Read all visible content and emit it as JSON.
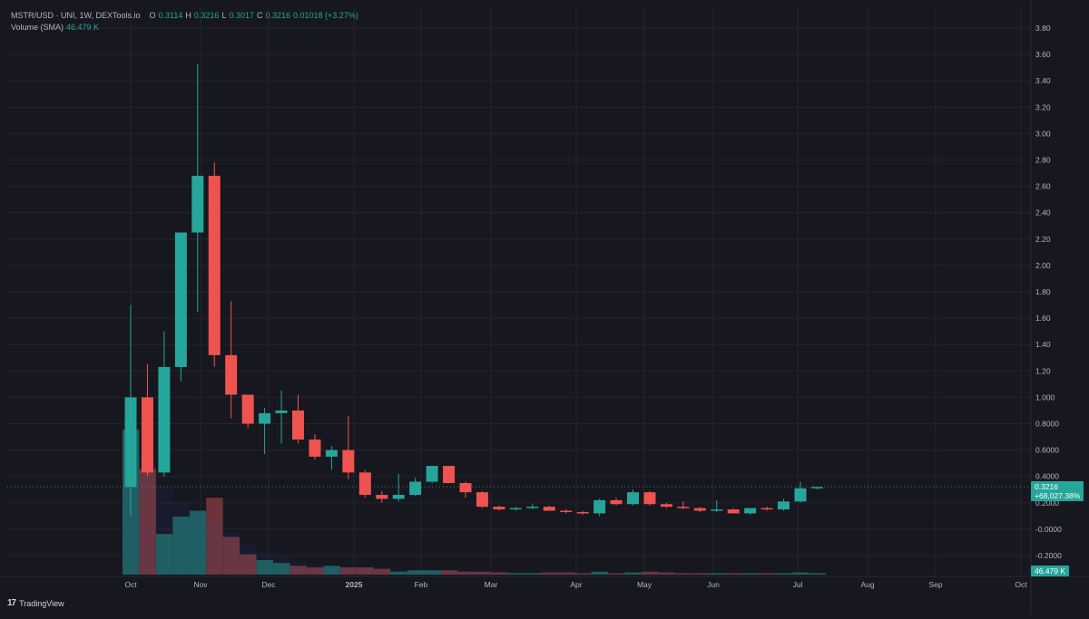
{
  "header": {
    "symbol": "MSTR/USD · UNI, 1W, DEXTools.io",
    "ohlc": [
      {
        "key": "O",
        "value": "0.3114"
      },
      {
        "key": "H",
        "value": "0.3216"
      },
      {
        "key": "L",
        "value": "0.3017"
      },
      {
        "key": "C",
        "value": "0.3216"
      }
    ],
    "change": "0.01018 (+3.27%)",
    "volume_label": "Volume (SMA)",
    "volume_value": "46.479 K"
  },
  "price_tag": {
    "price": "0.3216",
    "change": "+68,027.38%"
  },
  "volume_tag": "46.479 K",
  "branding": {
    "logo": "17",
    "name": "TradingView"
  },
  "colors": {
    "background": "#17171f",
    "grid": "#24242e",
    "up": "#26a69a",
    "down": "#ef5350",
    "up_volume": "#1f5f5a",
    "down_volume": "#6e3338",
    "text": "#b2b5be"
  },
  "chart_data": {
    "type": "candlestick",
    "interval": "1W",
    "y_ticks": [
      "3.80",
      "3.60",
      "3.40",
      "3.20",
      "3.00",
      "2.80",
      "2.60",
      "2.40",
      "2.20",
      "2.00",
      "1.80",
      "1.60",
      "1.40",
      "1.20",
      "1.000",
      "0.8000",
      "0.6000",
      "0.4000",
      "0.2000",
      "-0.0000",
      "-0.2000"
    ],
    "x_ticks": [
      "Oct",
      "Nov",
      "Dec",
      "2025",
      "Feb",
      "Mar",
      "Apr",
      "May",
      "Jun",
      "Jul",
      "Aug",
      "Sep",
      "Oct"
    ],
    "ylim": [
      -0.35,
      3.9
    ],
    "candles": [
      {
        "o": 0.32,
        "h": 1.7,
        "l": 0.1,
        "c": 1.0
      },
      {
        "o": 1.0,
        "h": 1.25,
        "l": 0.4,
        "c": 0.43
      },
      {
        "o": 0.43,
        "h": 1.5,
        "l": 0.4,
        "c": 1.23
      },
      {
        "o": 1.23,
        "h": 2.25,
        "l": 1.12,
        "c": 2.25
      },
      {
        "o": 2.25,
        "h": 3.53,
        "l": 1.65,
        "c": 2.68
      },
      {
        "o": 2.68,
        "h": 2.78,
        "l": 1.23,
        "c": 1.32
      },
      {
        "o": 1.32,
        "h": 1.73,
        "l": 0.84,
        "c": 1.02
      },
      {
        "o": 1.02,
        "h": 1.02,
        "l": 0.77,
        "c": 0.8
      },
      {
        "o": 0.8,
        "h": 0.92,
        "l": 0.57,
        "c": 0.88
      },
      {
        "o": 0.88,
        "h": 1.05,
        "l": 0.65,
        "c": 0.9
      },
      {
        "o": 0.9,
        "h": 1.02,
        "l": 0.65,
        "c": 0.68
      },
      {
        "o": 0.68,
        "h": 0.72,
        "l": 0.53,
        "c": 0.55
      },
      {
        "o": 0.55,
        "h": 0.63,
        "l": 0.45,
        "c": 0.6
      },
      {
        "o": 0.6,
        "h": 0.86,
        "l": 0.38,
        "c": 0.43
      },
      {
        "o": 0.43,
        "h": 0.45,
        "l": 0.24,
        "c": 0.26
      },
      {
        "o": 0.26,
        "h": 0.29,
        "l": 0.2,
        "c": 0.23
      },
      {
        "o": 0.23,
        "h": 0.42,
        "l": 0.21,
        "c": 0.26
      },
      {
        "o": 0.26,
        "h": 0.39,
        "l": 0.25,
        "c": 0.36
      },
      {
        "o": 0.36,
        "h": 0.48,
        "l": 0.35,
        "c": 0.48
      },
      {
        "o": 0.48,
        "h": 0.48,
        "l": 0.35,
        "c": 0.35
      },
      {
        "o": 0.35,
        "h": 0.36,
        "l": 0.24,
        "c": 0.28
      },
      {
        "o": 0.28,
        "h": 0.29,
        "l": 0.16,
        "c": 0.17
      },
      {
        "o": 0.17,
        "h": 0.18,
        "l": 0.14,
        "c": 0.15
      },
      {
        "o": 0.15,
        "h": 0.17,
        "l": 0.14,
        "c": 0.16
      },
      {
        "o": 0.16,
        "h": 0.19,
        "l": 0.15,
        "c": 0.17
      },
      {
        "o": 0.17,
        "h": 0.18,
        "l": 0.14,
        "c": 0.14
      },
      {
        "o": 0.14,
        "h": 0.15,
        "l": 0.12,
        "c": 0.13
      },
      {
        "o": 0.13,
        "h": 0.14,
        "l": 0.11,
        "c": 0.12
      },
      {
        "o": 0.12,
        "h": 0.23,
        "l": 0.1,
        "c": 0.22
      },
      {
        "o": 0.22,
        "h": 0.24,
        "l": 0.18,
        "c": 0.19
      },
      {
        "o": 0.19,
        "h": 0.3,
        "l": 0.18,
        "c": 0.28
      },
      {
        "o": 0.28,
        "h": 0.29,
        "l": 0.18,
        "c": 0.19
      },
      {
        "o": 0.19,
        "h": 0.2,
        "l": 0.16,
        "c": 0.17
      },
      {
        "o": 0.17,
        "h": 0.21,
        "l": 0.15,
        "c": 0.16
      },
      {
        "o": 0.16,
        "h": 0.17,
        "l": 0.13,
        "c": 0.14
      },
      {
        "o": 0.14,
        "h": 0.22,
        "l": 0.13,
        "c": 0.15
      },
      {
        "o": 0.15,
        "h": 0.16,
        "l": 0.12,
        "c": 0.12
      },
      {
        "o": 0.12,
        "h": 0.16,
        "l": 0.11,
        "c": 0.16
      },
      {
        "o": 0.16,
        "h": 0.17,
        "l": 0.14,
        "c": 0.15
      },
      {
        "o": 0.15,
        "h": 0.23,
        "l": 0.14,
        "c": 0.21
      },
      {
        "o": 0.21,
        "h": 0.36,
        "l": 0.2,
        "c": 0.31
      },
      {
        "o": 0.31,
        "h": 0.32,
        "l": 0.3,
        "c": 0.32
      }
    ],
    "volume_relative": [
      1.0,
      0.73,
      0.28,
      0.4,
      0.44,
      0.53,
      0.26,
      0.14,
      0.1,
      0.08,
      0.06,
      0.05,
      0.06,
      0.05,
      0.05,
      0.04,
      0.02,
      0.03,
      0.03,
      0.03,
      0.02,
      0.02,
      0.015,
      0.01,
      0.01,
      0.015,
      0.015,
      0.01,
      0.02,
      0.01,
      0.015,
      0.02,
      0.015,
      0.01,
      0.01,
      0.01,
      0.01,
      0.01,
      0.01,
      0.01,
      0.015,
      0.01
    ],
    "volume_sma_relative": [
      0.72,
      0.8,
      0.6,
      0.5,
      0.45,
      0.38,
      0.3,
      0.22,
      0.16,
      0.12,
      0.09,
      0.07,
      0.06,
      0.05,
      0.05,
      0.04,
      0.035,
      0.03,
      0.03,
      0.03,
      0.025,
      0.02,
      0.02,
      0.015,
      0.015,
      0.015,
      0.015,
      0.012,
      0.015,
      0.012,
      0.015,
      0.015,
      0.015,
      0.012,
      0.01,
      0.01,
      0.01,
      0.01,
      0.01,
      0.01,
      0.012,
      0.01
    ],
    "last_price": 0.3216,
    "grid": true
  }
}
